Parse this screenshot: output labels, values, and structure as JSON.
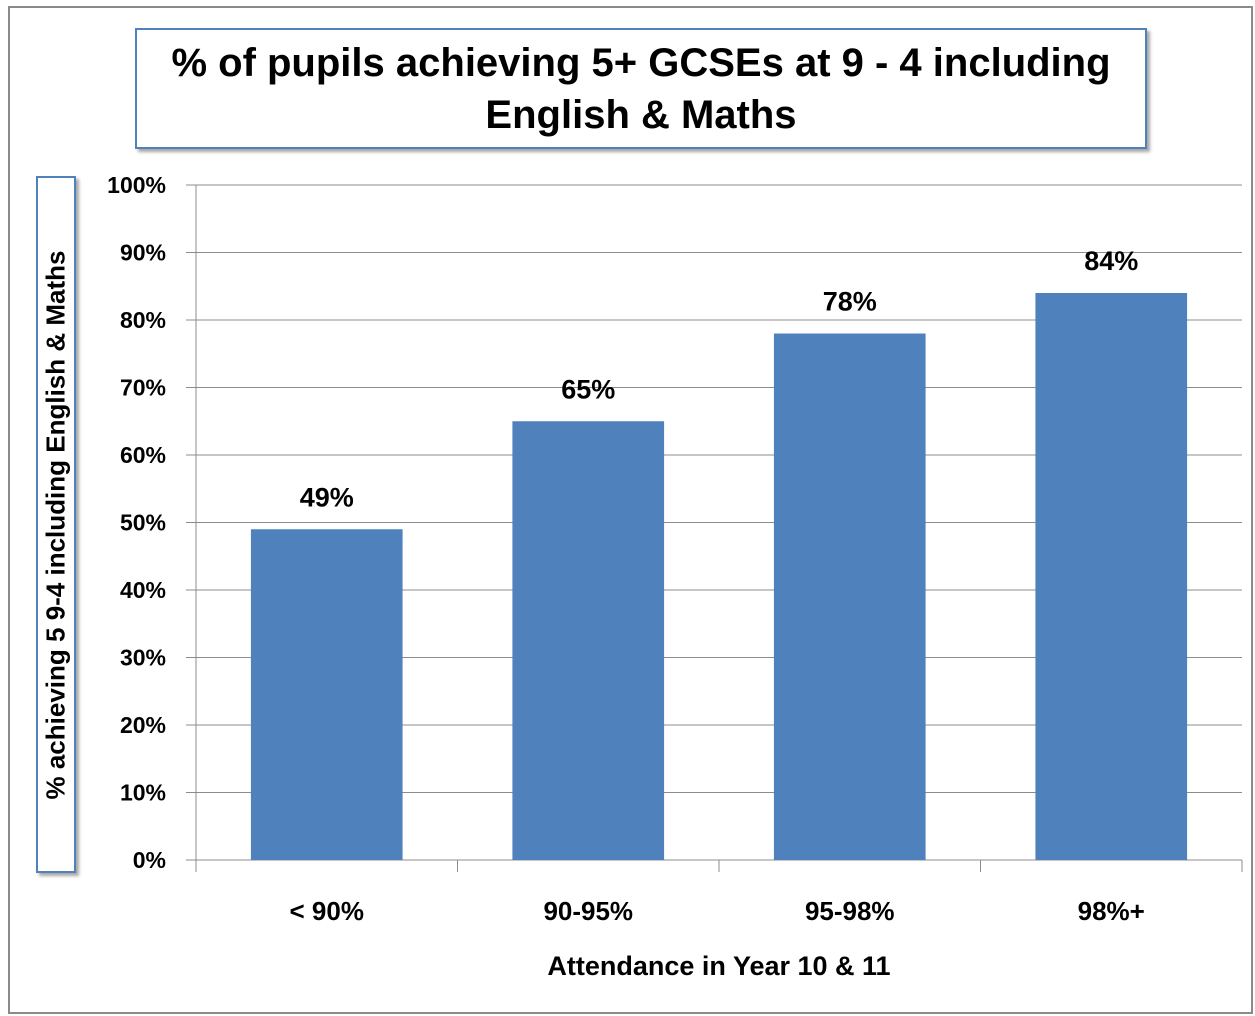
{
  "chart_data": {
    "type": "bar",
    "title": "% of pupils achieving 5+ GCSEs at 9 - 4 including English & Maths",
    "xlabel": "Attendance in Year 10 & 11",
    "ylabel": "% achieving 5 9-4 including English & Maths",
    "categories": [
      "< 90%",
      "90-95%",
      "95-98%",
      "98%+"
    ],
    "values": [
      49,
      65,
      78,
      84
    ],
    "data_labels": [
      "49%",
      "65%",
      "78%",
      "84%"
    ],
    "ylim": [
      0,
      100
    ],
    "yticks": [
      0,
      10,
      20,
      30,
      40,
      50,
      60,
      70,
      80,
      90,
      100
    ],
    "ytick_labels": [
      "0%",
      "10%",
      "20%",
      "30%",
      "40%",
      "50%",
      "60%",
      "70%",
      "80%",
      "90%",
      "100%"
    ],
    "grid": true,
    "legend": "none",
    "bar_color": "#4f81bd",
    "grid_color": "#8c8c8c"
  }
}
